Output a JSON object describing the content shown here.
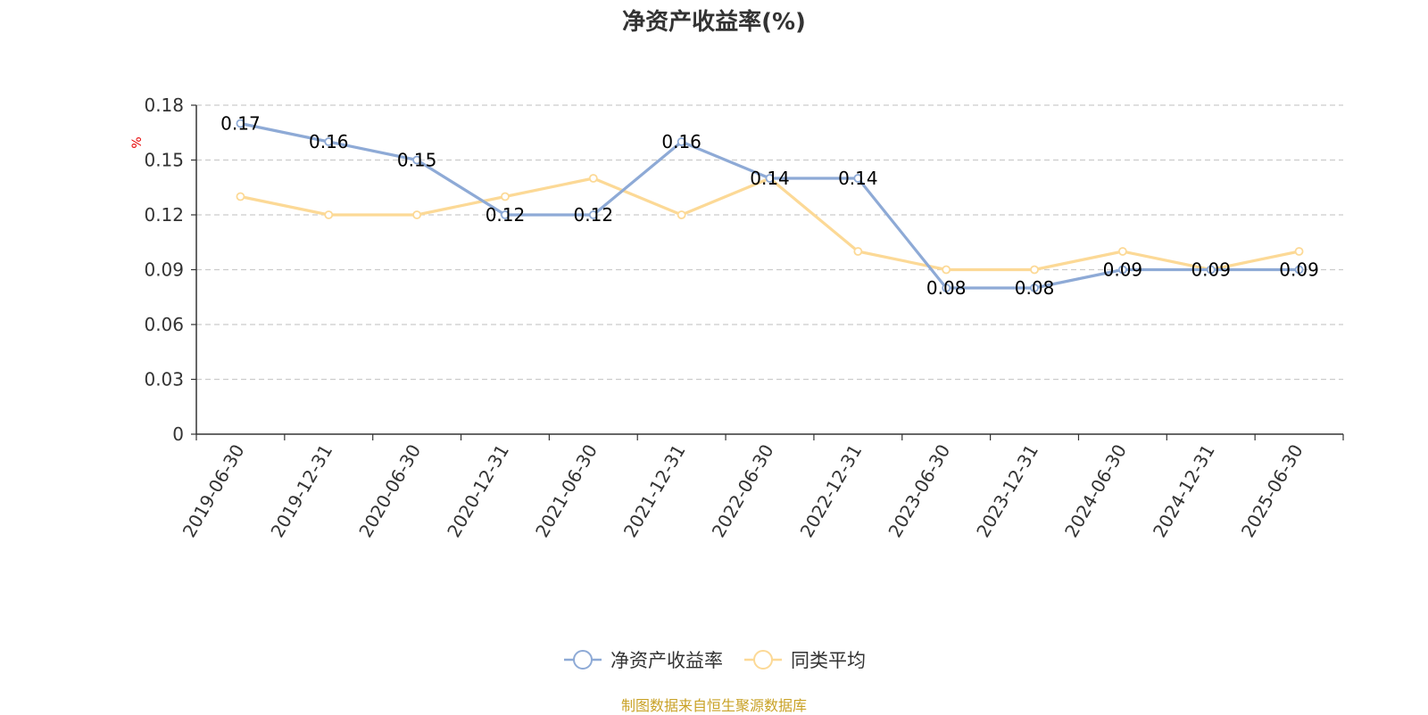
{
  "chart_data": {
    "type": "line",
    "title": "净资产收益率(%)",
    "unit": "%",
    "categories": [
      "2019-06-30",
      "2019-12-31",
      "2020-06-30",
      "2020-12-31",
      "2021-06-30",
      "2021-12-31",
      "2022-06-30",
      "2022-12-31",
      "2023-06-30",
      "2023-12-31",
      "2024-06-30",
      "2024-12-31",
      "2025-06-30"
    ],
    "series": [
      {
        "name": "净资产收益率",
        "color": "#8eaad6",
        "show_labels": true,
        "values": [
          0.17,
          0.16,
          0.15,
          0.12,
          0.12,
          0.16,
          0.14,
          0.14,
          0.08,
          0.08,
          0.09,
          0.09,
          0.09
        ]
      },
      {
        "name": "同类平均",
        "color": "#fcd996",
        "show_labels": false,
        "values": [
          0.13,
          0.12,
          0.12,
          0.13,
          0.14,
          0.12,
          0.14,
          0.1,
          0.09,
          0.09,
          0.1,
          0.09,
          0.1
        ]
      }
    ],
    "yticks": [
      "0",
      "0.03",
      "0.06",
      "0.09",
      "0.12",
      "0.15",
      "0.18"
    ],
    "ylim": [
      0,
      0.18
    ],
    "grid": true,
    "legend_position": "bottom"
  },
  "source_note": "制图数据来自恒生聚源数据库"
}
